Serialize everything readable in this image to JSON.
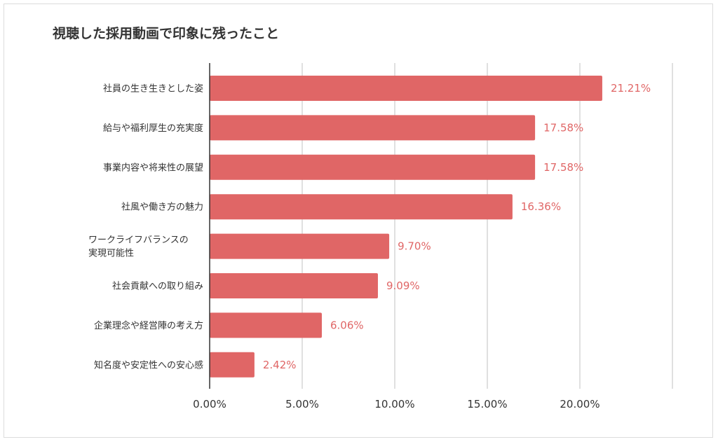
{
  "chart_data": {
    "type": "bar",
    "orientation": "horizontal",
    "title": "視聴した採用動画で印象に残ったこと",
    "categories": [
      "社員の生き生きとした姿",
      "給与や福利厚生の充実度",
      "事業内容や将来性の展望",
      "社風や働き方の魅力",
      "ワークライフバランスの実現可能性",
      "社会貢献への取り組み",
      "企業理念や経営陣の考え方",
      "知名度や安定性への安心感"
    ],
    "category_display_lines": [
      [
        "社員の生き生きとした姿"
      ],
      [
        "給与や福利厚生の充実度"
      ],
      [
        "事業内容や将来性の展望"
      ],
      [
        "社風や働き方の魅力"
      ],
      [
        "ワークライフバランスの",
        "実現可能性"
      ],
      [
        "社会貢献への取り組み"
      ],
      [
        "企業理念や経営陣の考え方"
      ],
      [
        "知名度や安定性への安心感"
      ]
    ],
    "values": [
      21.21,
      17.58,
      17.58,
      16.36,
      9.7,
      9.09,
      6.06,
      2.42
    ],
    "value_labels": [
      "21.21%",
      "17.58%",
      "17.58%",
      "16.36%",
      "9.70%",
      "9.09%",
      "6.06%",
      "2.42%"
    ],
    "x_ticks": [
      0,
      5,
      10,
      15,
      20,
      25
    ],
    "x_tick_labels": [
      "0.00%",
      "5.00%",
      "10.00%",
      "15.00%",
      "20.00%",
      ""
    ],
    "xlim": [
      0,
      25
    ],
    "xlabel": "",
    "ylabel": "",
    "grid": true,
    "legend": "none",
    "bar_color": "#e06666",
    "label_color": "#e06666",
    "grid_color": "#cccccc",
    "axis_color": "#333333"
  }
}
